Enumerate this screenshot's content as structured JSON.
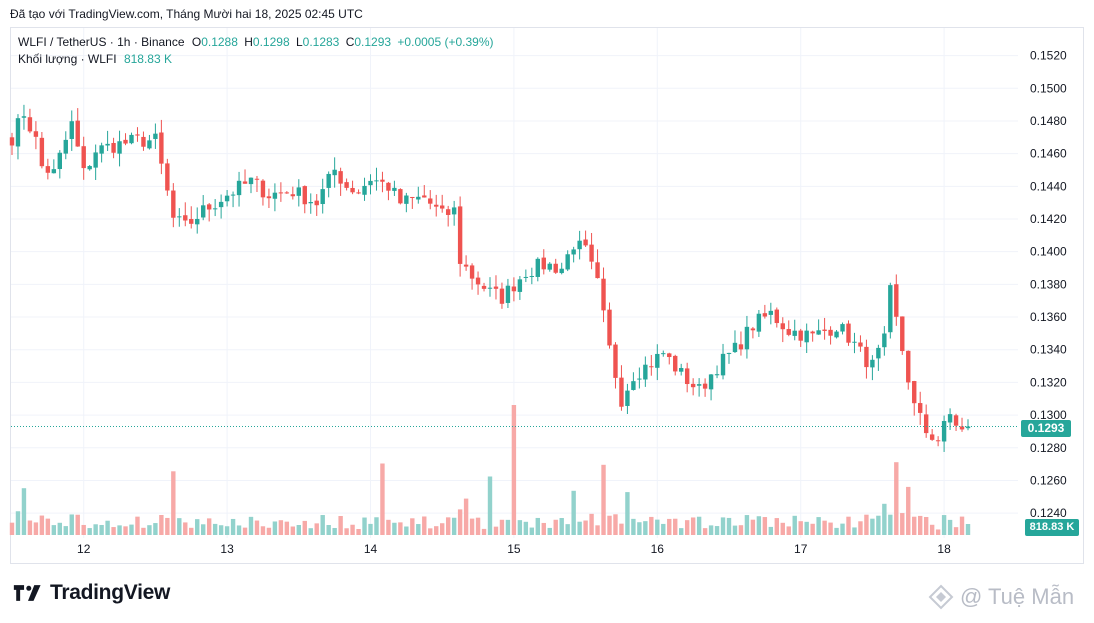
{
  "header": {
    "title": "Đã tạo với TradingView.com, Tháng Mười hai 18, 2025 02:45 UTC"
  },
  "legend": {
    "symbol": "WLFI / TetherUS · 1h · Binance",
    "o_label": "O",
    "o_value": "0.1288",
    "h_label": "H",
    "h_value": "0.1298",
    "l_label": "L",
    "l_value": "0.1283",
    "c_label": "C",
    "c_value": "0.1293",
    "change": "+0.0005 (+0.39%)",
    "volume_label": "Khối lượng · WLFI",
    "volume_value": "818.83 K"
  },
  "badges": {
    "price": "0.1293",
    "volume": "818.83 K"
  },
  "brand": {
    "name": "TradingView"
  },
  "watermark": {
    "text": "@ Tuệ Mẫn"
  },
  "colors": {
    "up": "#26a69a",
    "down": "#ef5350",
    "up_vol": "#92d2cc",
    "down_vol": "#f7a9a7",
    "grid": "#f0f3fa"
  },
  "chart_data": {
    "type": "candlestick",
    "title": "WLFI / TetherUS · 1h · Binance",
    "yticks": [
      "0.1520",
      "0.1500",
      "0.1480",
      "0.1460",
      "0.1440",
      "0.1420",
      "0.1400",
      "0.1380",
      "0.1360",
      "0.1340",
      "0.1320",
      "0.1300",
      "0.1280",
      "0.1260",
      "0.1240"
    ],
    "ylim": [
      0.1226,
      0.1532
    ],
    "xticks": [
      {
        "label": "12",
        "index": 12
      },
      {
        "label": "13",
        "index": 36
      },
      {
        "label": "14",
        "index": 60
      },
      {
        "label": "15",
        "index": 84
      },
      {
        "label": "16",
        "index": 108
      },
      {
        "label": "17",
        "index": 132
      },
      {
        "label": "18",
        "index": 156
      }
    ],
    "last_price": 0.1293,
    "volume_max_k": 2300,
    "anchors": [
      [
        0,
        0.147
      ],
      [
        2,
        0.1485
      ],
      [
        4,
        0.1468
      ],
      [
        5,
        0.1452
      ],
      [
        7,
        0.1448
      ],
      [
        10,
        0.1478
      ],
      [
        12,
        0.1448
      ],
      [
        14,
        0.1462
      ],
      [
        17,
        0.1465
      ],
      [
        21,
        0.1468
      ],
      [
        24,
        0.1468
      ],
      [
        27,
        0.142
      ],
      [
        29,
        0.1415
      ],
      [
        32,
        0.1425
      ],
      [
        36,
        0.1435
      ],
      [
        40,
        0.1443
      ],
      [
        43,
        0.1435
      ],
      [
        47,
        0.1437
      ],
      [
        51,
        0.143
      ],
      [
        54,
        0.145
      ],
      [
        56,
        0.144
      ],
      [
        58,
        0.1437
      ],
      [
        60,
        0.1445
      ],
      [
        63,
        0.144
      ],
      [
        65,
        0.143
      ],
      [
        69,
        0.1433
      ],
      [
        72,
        0.1422
      ],
      [
        74,
        0.1425
      ],
      [
        75,
        0.1395
      ],
      [
        77,
        0.1385
      ],
      [
        80,
        0.1375
      ],
      [
        82,
        0.1372
      ],
      [
        84,
        0.138
      ],
      [
        86,
        0.1388
      ],
      [
        89,
        0.1392
      ],
      [
        92,
        0.139
      ],
      [
        94,
        0.1405
      ],
      [
        96,
        0.14
      ],
      [
        98,
        0.138
      ],
      [
        100,
        0.134
      ],
      [
        102,
        0.131
      ],
      [
        104,
        0.1325
      ],
      [
        107,
        0.1332
      ],
      [
        109,
        0.1338
      ],
      [
        112,
        0.1325
      ],
      [
        115,
        0.1315
      ],
      [
        118,
        0.133
      ],
      [
        121,
        0.134
      ],
      [
        124,
        0.1355
      ],
      [
        127,
        0.1362
      ],
      [
        130,
        0.1352
      ],
      [
        134,
        0.1348
      ],
      [
        138,
        0.1355
      ],
      [
        140,
        0.1348
      ],
      [
        142,
        0.1338
      ],
      [
        144,
        0.133
      ],
      [
        146,
        0.1345
      ],
      [
        147,
        0.1375
      ],
      [
        149,
        0.134
      ],
      [
        151,
        0.1305
      ],
      [
        153,
        0.129
      ],
      [
        155,
        0.1285
      ],
      [
        157,
        0.13
      ],
      [
        159,
        0.129
      ],
      [
        160,
        0.1293
      ]
    ]
  }
}
